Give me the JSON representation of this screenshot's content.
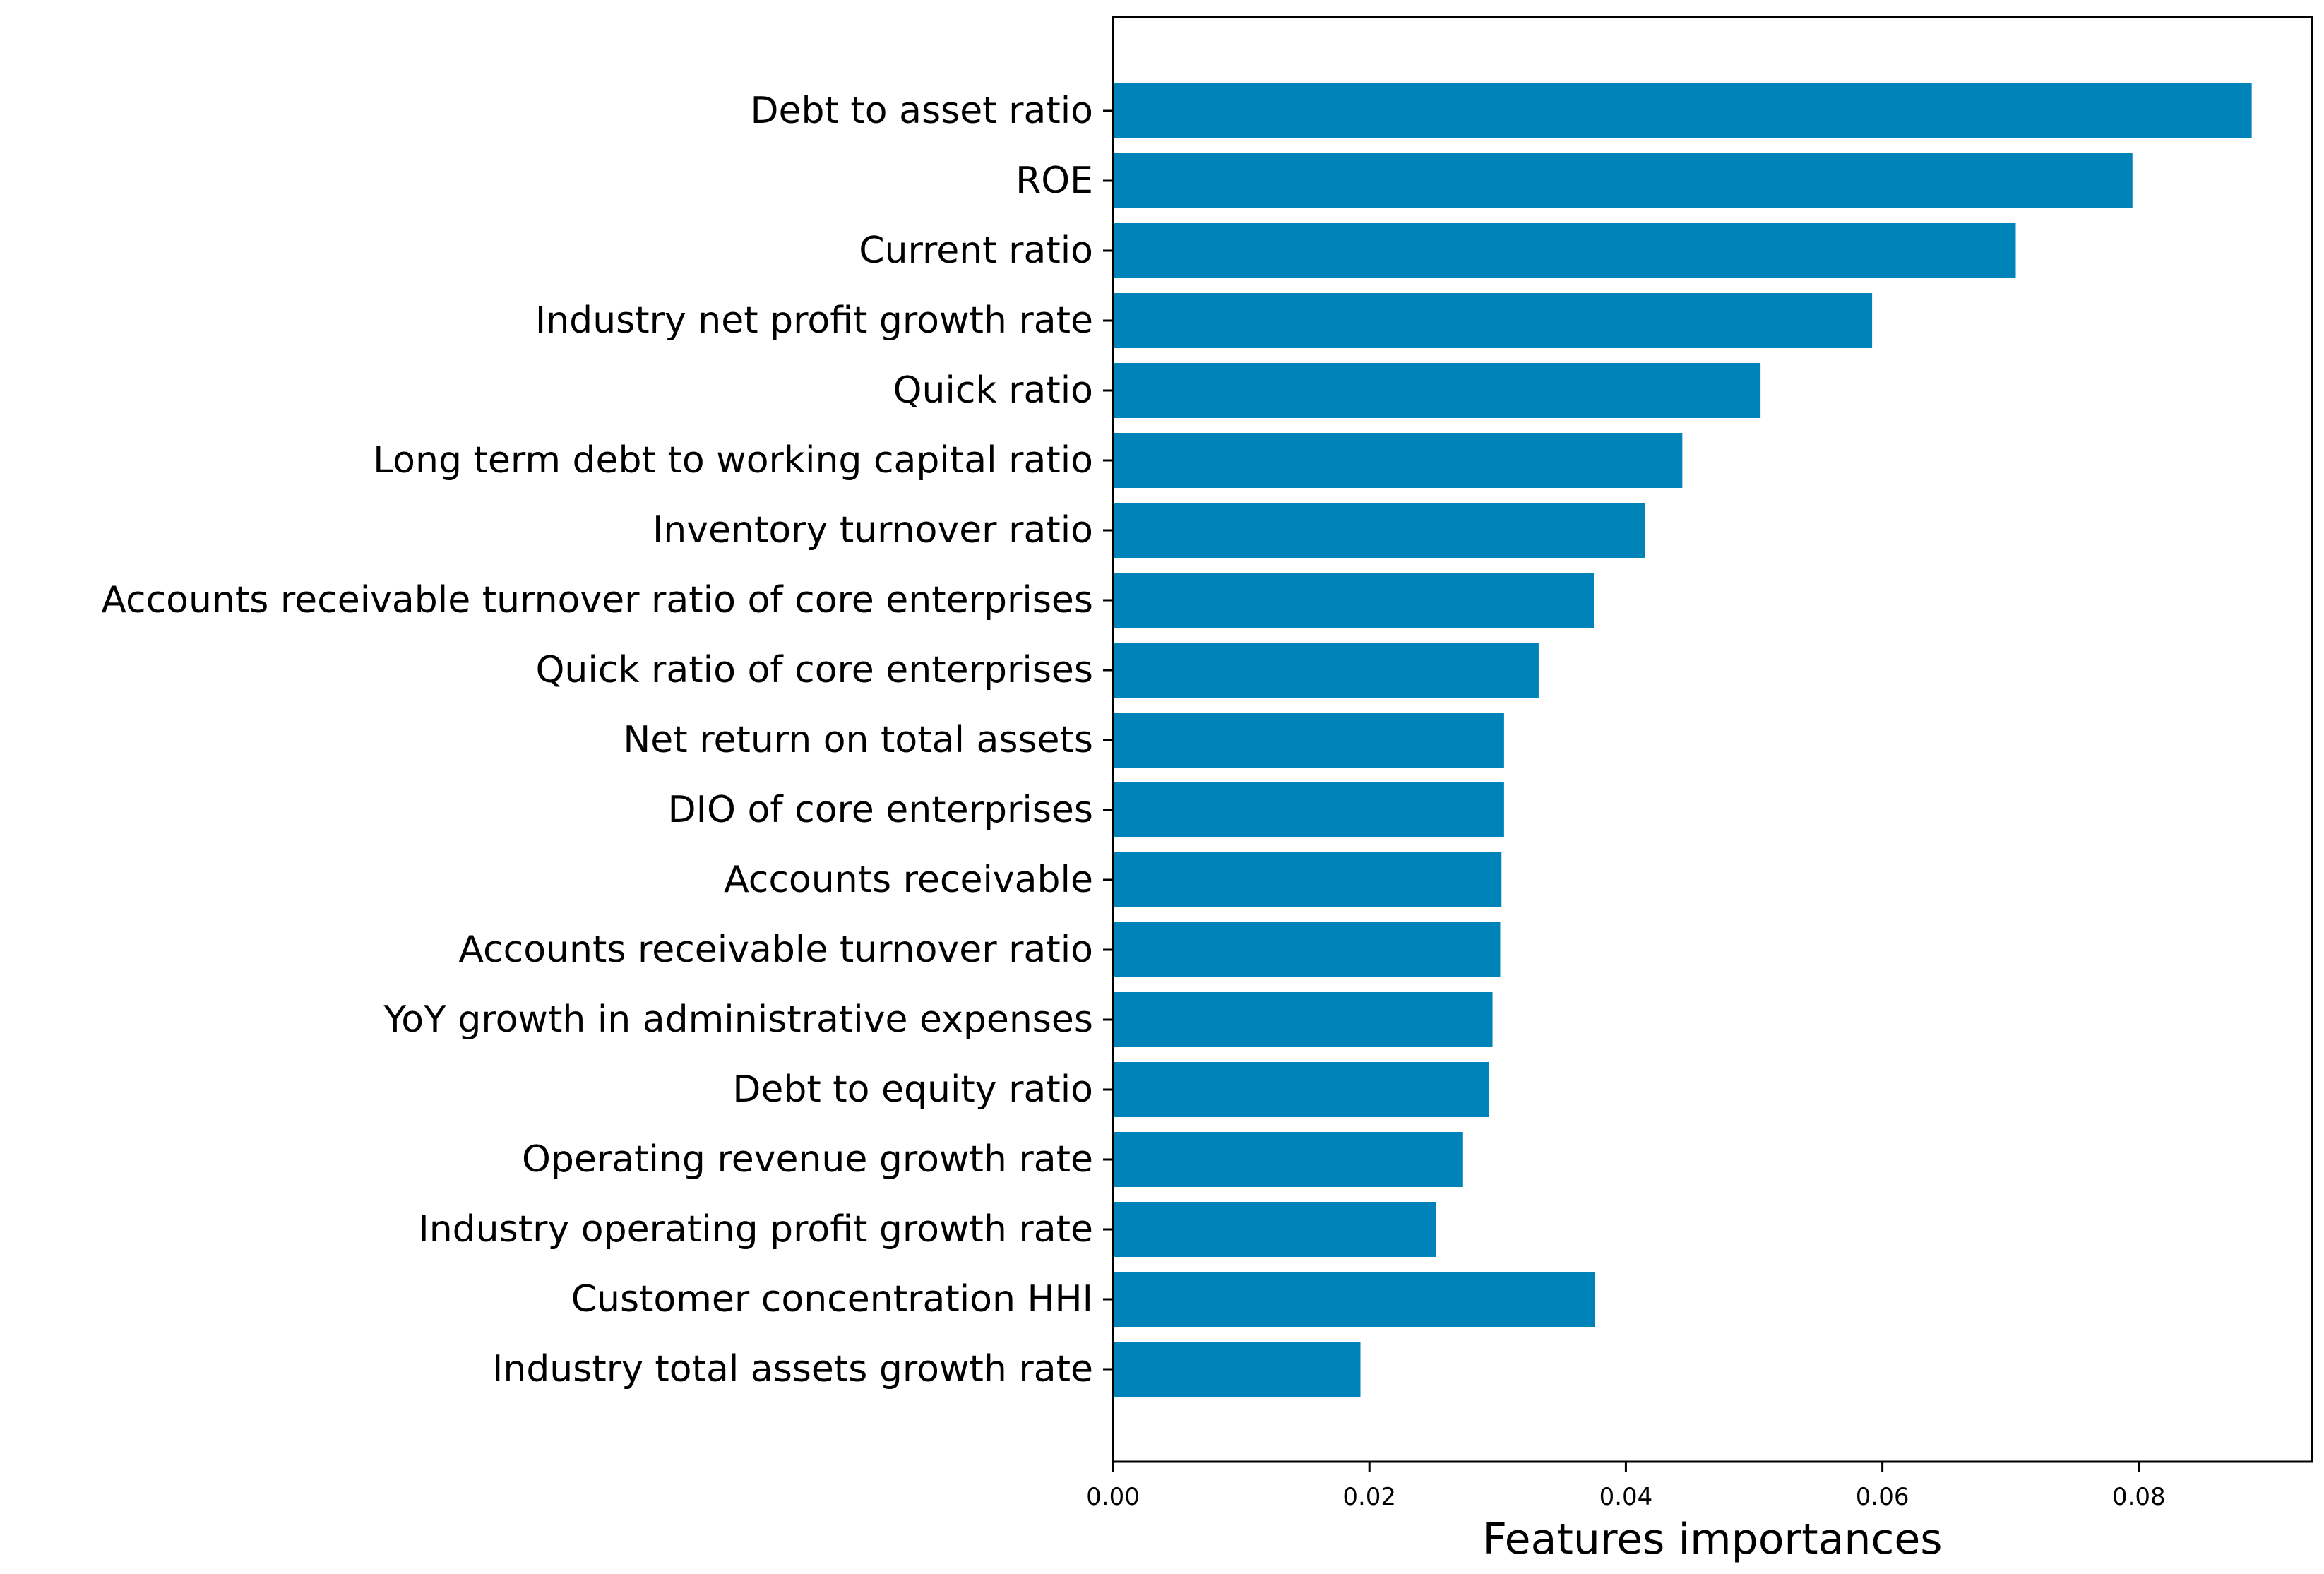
{
  "chart_data": {
    "type": "bar",
    "orientation": "horizontal",
    "title": "",
    "xlabel": "Features importances",
    "ylabel": "",
    "xlim": [
      0,
      0.0935
    ],
    "xticks": [
      0.0,
      0.02,
      0.04,
      0.06,
      0.08
    ],
    "xtick_labels": [
      "0.00",
      "0.02",
      "0.04",
      "0.06",
      "0.08"
    ],
    "grid": false,
    "bar_color": "#0083B8",
    "categories": [
      "Debt to asset ratio",
      "ROE",
      "Current ratio",
      "Industry net profit growth rate",
      "Quick ratio",
      "Long term debt to working capital ratio",
      "Inventory turnover ratio",
      "Accounts receivable turnover ratio of core enterprises",
      "Quick ratio of core enterprises",
      "Net return on total assets",
      "DIO of core enterprises",
      "Accounts receivable",
      "Accounts receivable turnover ratio",
      "YoY growth in administrative expenses",
      "Debt to equity ratio",
      "Operating revenue growth rate",
      "Industry operating profit growth rate",
      "Customer concentration HHI",
      "Industry total assets growth rate"
    ],
    "values": [
      0.0888,
      0.0795,
      0.0704,
      0.0592,
      0.0505,
      0.0444,
      0.0415,
      0.0375,
      0.0332,
      0.0305,
      0.0305,
      0.0303,
      0.0302,
      0.0296,
      0.0293,
      0.0273,
      0.0252,
      0.0376,
      0.0193
    ]
  }
}
